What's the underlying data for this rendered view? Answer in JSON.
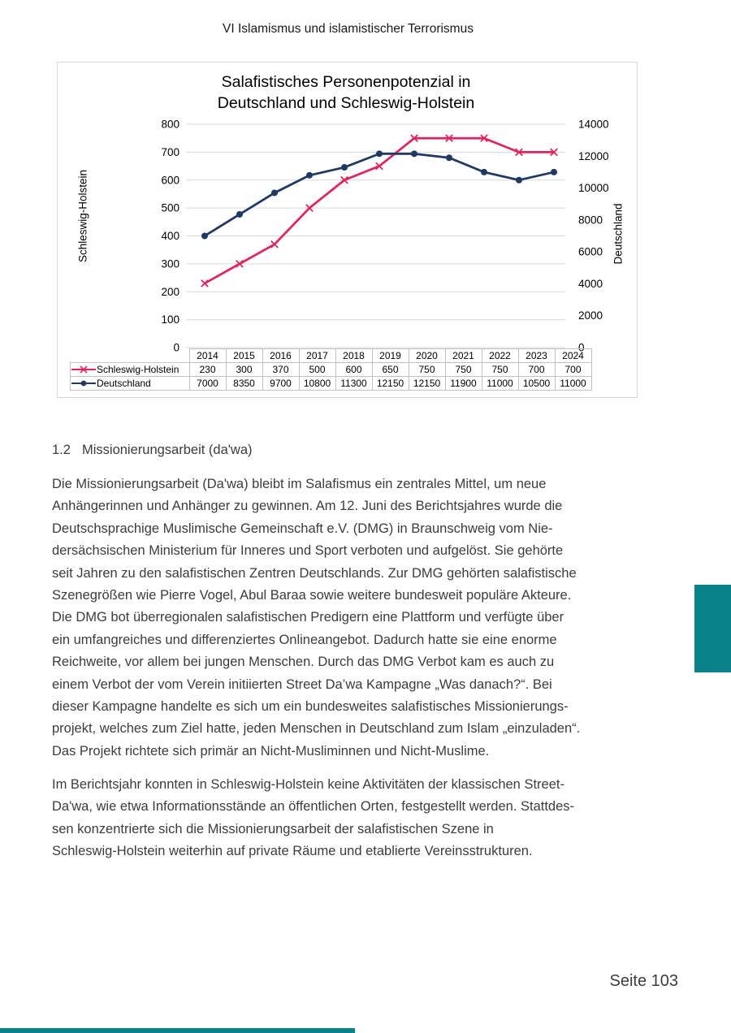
{
  "header": {
    "title": "VI Islamismus und islamistischer Terrorismus"
  },
  "chart": {
    "title_line1": "Salafistisches Personenpotenzial in",
    "title_line2": "Deutschland und Schleswig-Holstein",
    "left_axis_label": "Schleswig-Holstein",
    "right_axis_label": "Deutschland",
    "colors": {
      "grid": "#d9d9d9",
      "table_border": "#c0c0c0"
    }
  },
  "chart_data": {
    "type": "line",
    "title": "Salafistisches Personenpotenzial in Deutschland und Schleswig-Holstein",
    "categories": [
      "2014",
      "2015",
      "2016",
      "2017",
      "2018",
      "2019",
      "2020",
      "2021",
      "2022",
      "2023",
      "2024"
    ],
    "series": [
      {
        "name": "Schleswig-Holstein",
        "axis": "left",
        "color": "#e4235c",
        "marker": "x",
        "values": [
          230,
          300,
          370,
          500,
          600,
          650,
          750,
          750,
          750,
          700,
          700
        ]
      },
      {
        "name": "Deutschland",
        "axis": "right",
        "color": "#1f3864",
        "marker": "circle",
        "values": [
          7000,
          8350,
          9700,
          10800,
          11300,
          12150,
          12150,
          11900,
          11000,
          10500,
          11000
        ]
      }
    ],
    "left_ylim": [
      0,
      800
    ],
    "left_step": 100,
    "right_ylim": [
      0,
      14000
    ],
    "right_step": 2000,
    "ylabel_left": "Schleswig-Holstein",
    "ylabel_right": "Deutschland",
    "grid": true,
    "legend_position": "table-left"
  },
  "section": {
    "number": "1.2",
    "title": "Missionierungsarbeit (da'wa)"
  },
  "body": {
    "paragraphs": [
      {
        "lines": [
          "Die Missionierungsarbeit (Da'wa) bleibt im Salafismus ein zentrales Mittel, um neue",
          "Anhängerinnen und Anhänger zu gewinnen. Am 12. Juni des Berichtsjahres wurde die",
          "Deutschsprachige Muslimische Gemeinschaft e.V. (DMG) in Braunschweig vom Nie-",
          "dersächsischen Ministerium für Inneres und Sport verboten und aufgelöst. Sie gehörte",
          "seit Jahren zu den salafistischen Zentren Deutschlands. Zur DMG gehörten salafistische",
          "Szenegrößen wie Pierre Vogel, Abul Baraa sowie weitere bundesweit populäre Akteure.",
          "Die DMG bot überregionalen salafistischen Predigern eine Plattform und verfügte über",
          "ein umfangreiches und differenziertes Onlineangebot. Dadurch hatte sie eine enorme",
          "Reichweite, vor allem bei jungen Menschen. Durch das DMG Verbot kam es auch zu",
          "einem Verbot der vom Verein initiierten Street Da’wa Kampagne „Was danach?“. Bei",
          "dieser Kampagne handelte es sich um ein bundesweites salafistisches Missionierungs-",
          "projekt, welches zum Ziel hatte, jeden Menschen in Deutschland zum Islam „einzuladen“.",
          "Das Projekt richtete sich primär an Nicht-Musliminnen und Nicht-Muslime."
        ]
      },
      {
        "lines": [
          "Im Berichtsjahr konnten in Schleswig-Holstein keine Aktivitäten der klassischen Street-",
          "Da'wa, wie etwa Informationsstände an öffentlichen Orten, festgestellt werden. Stattdes-",
          "sen konzentrierte sich die Missionierungsarbeit der salafistischen Szene in",
          "Schleswig-Holstein weiterhin auf private Räume und etablierte Vereinsstrukturen."
        ]
      }
    ]
  },
  "footer": {
    "page_label": "Seite 103"
  },
  "accent": {
    "teal": "#0a828a"
  }
}
